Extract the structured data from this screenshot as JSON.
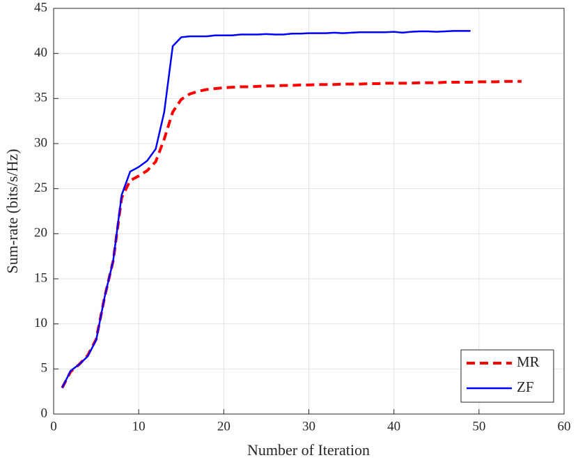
{
  "chart_data": {
    "type": "line",
    "xlabel": "Number of Iteration",
    "ylabel": "Sum-rate (bits/s/Hz)",
    "xlim": [
      0,
      60
    ],
    "xticks": [
      0,
      10,
      20,
      30,
      40,
      50,
      60
    ],
    "ylim": [
      0,
      45
    ],
    "yticks": [
      0,
      5,
      10,
      15,
      20,
      25,
      30,
      35,
      40,
      45
    ],
    "grid": true,
    "legend": "lower right",
    "series": [
      {
        "name": "MR",
        "color": "#ff0000",
        "dash": true,
        "x": [
          1,
          2,
          3,
          4,
          5,
          6,
          7,
          8,
          9,
          10,
          11,
          12,
          13,
          14,
          15,
          16,
          17,
          18,
          19,
          20,
          21,
          22,
          23,
          24,
          25,
          26,
          27,
          28,
          29,
          30,
          31,
          32,
          33,
          34,
          35,
          36,
          37,
          38,
          39,
          40,
          41,
          42,
          43,
          44,
          45,
          46,
          47,
          48,
          49,
          50,
          51,
          52,
          53,
          54,
          55
        ],
        "values": [
          2.9,
          4.7,
          5.5,
          6.5,
          8.3,
          13,
          17,
          24,
          25.9,
          26.4,
          27,
          28,
          30.5,
          33.5,
          34.9,
          35.5,
          35.8,
          36,
          36.1,
          36.2,
          36.25,
          36.3,
          36.3,
          36.35,
          36.4,
          36.4,
          36.45,
          36.45,
          36.5,
          36.5,
          36.55,
          36.55,
          36.55,
          36.6,
          36.6,
          36.6,
          36.65,
          36.65,
          36.7,
          36.7,
          36.7,
          36.7,
          36.75,
          36.75,
          36.75,
          36.8,
          36.8,
          36.8,
          36.8,
          36.85,
          36.85,
          36.85,
          36.9,
          36.9,
          36.9
        ]
      },
      {
        "name": "ZF",
        "color": "#0000ff",
        "dash": false,
        "x": [
          1,
          2,
          3,
          4,
          5,
          6,
          7,
          8,
          9,
          10,
          11,
          12,
          13,
          14,
          15,
          16,
          17,
          18,
          19,
          20,
          21,
          22,
          23,
          24,
          25,
          26,
          27,
          28,
          29,
          30,
          31,
          32,
          33,
          34,
          35,
          36,
          37,
          38,
          39,
          40,
          41,
          42,
          43,
          44,
          45,
          46,
          47,
          48,
          49
        ],
        "values": [
          2.9,
          4.8,
          5.5,
          6.4,
          8.2,
          13,
          17,
          24.3,
          26.9,
          27.4,
          28.1,
          29.4,
          33.5,
          40.8,
          41.8,
          41.9,
          41.9,
          41.9,
          42,
          42,
          42,
          42.1,
          42.1,
          42.1,
          42.15,
          42.1,
          42.1,
          42.2,
          42.2,
          42.25,
          42.25,
          42.25,
          42.3,
          42.25,
          42.3,
          42.35,
          42.35,
          42.35,
          42.35,
          42.4,
          42.3,
          42.4,
          42.45,
          42.45,
          42.4,
          42.45,
          42.5,
          42.5,
          42.5
        ]
      }
    ]
  }
}
